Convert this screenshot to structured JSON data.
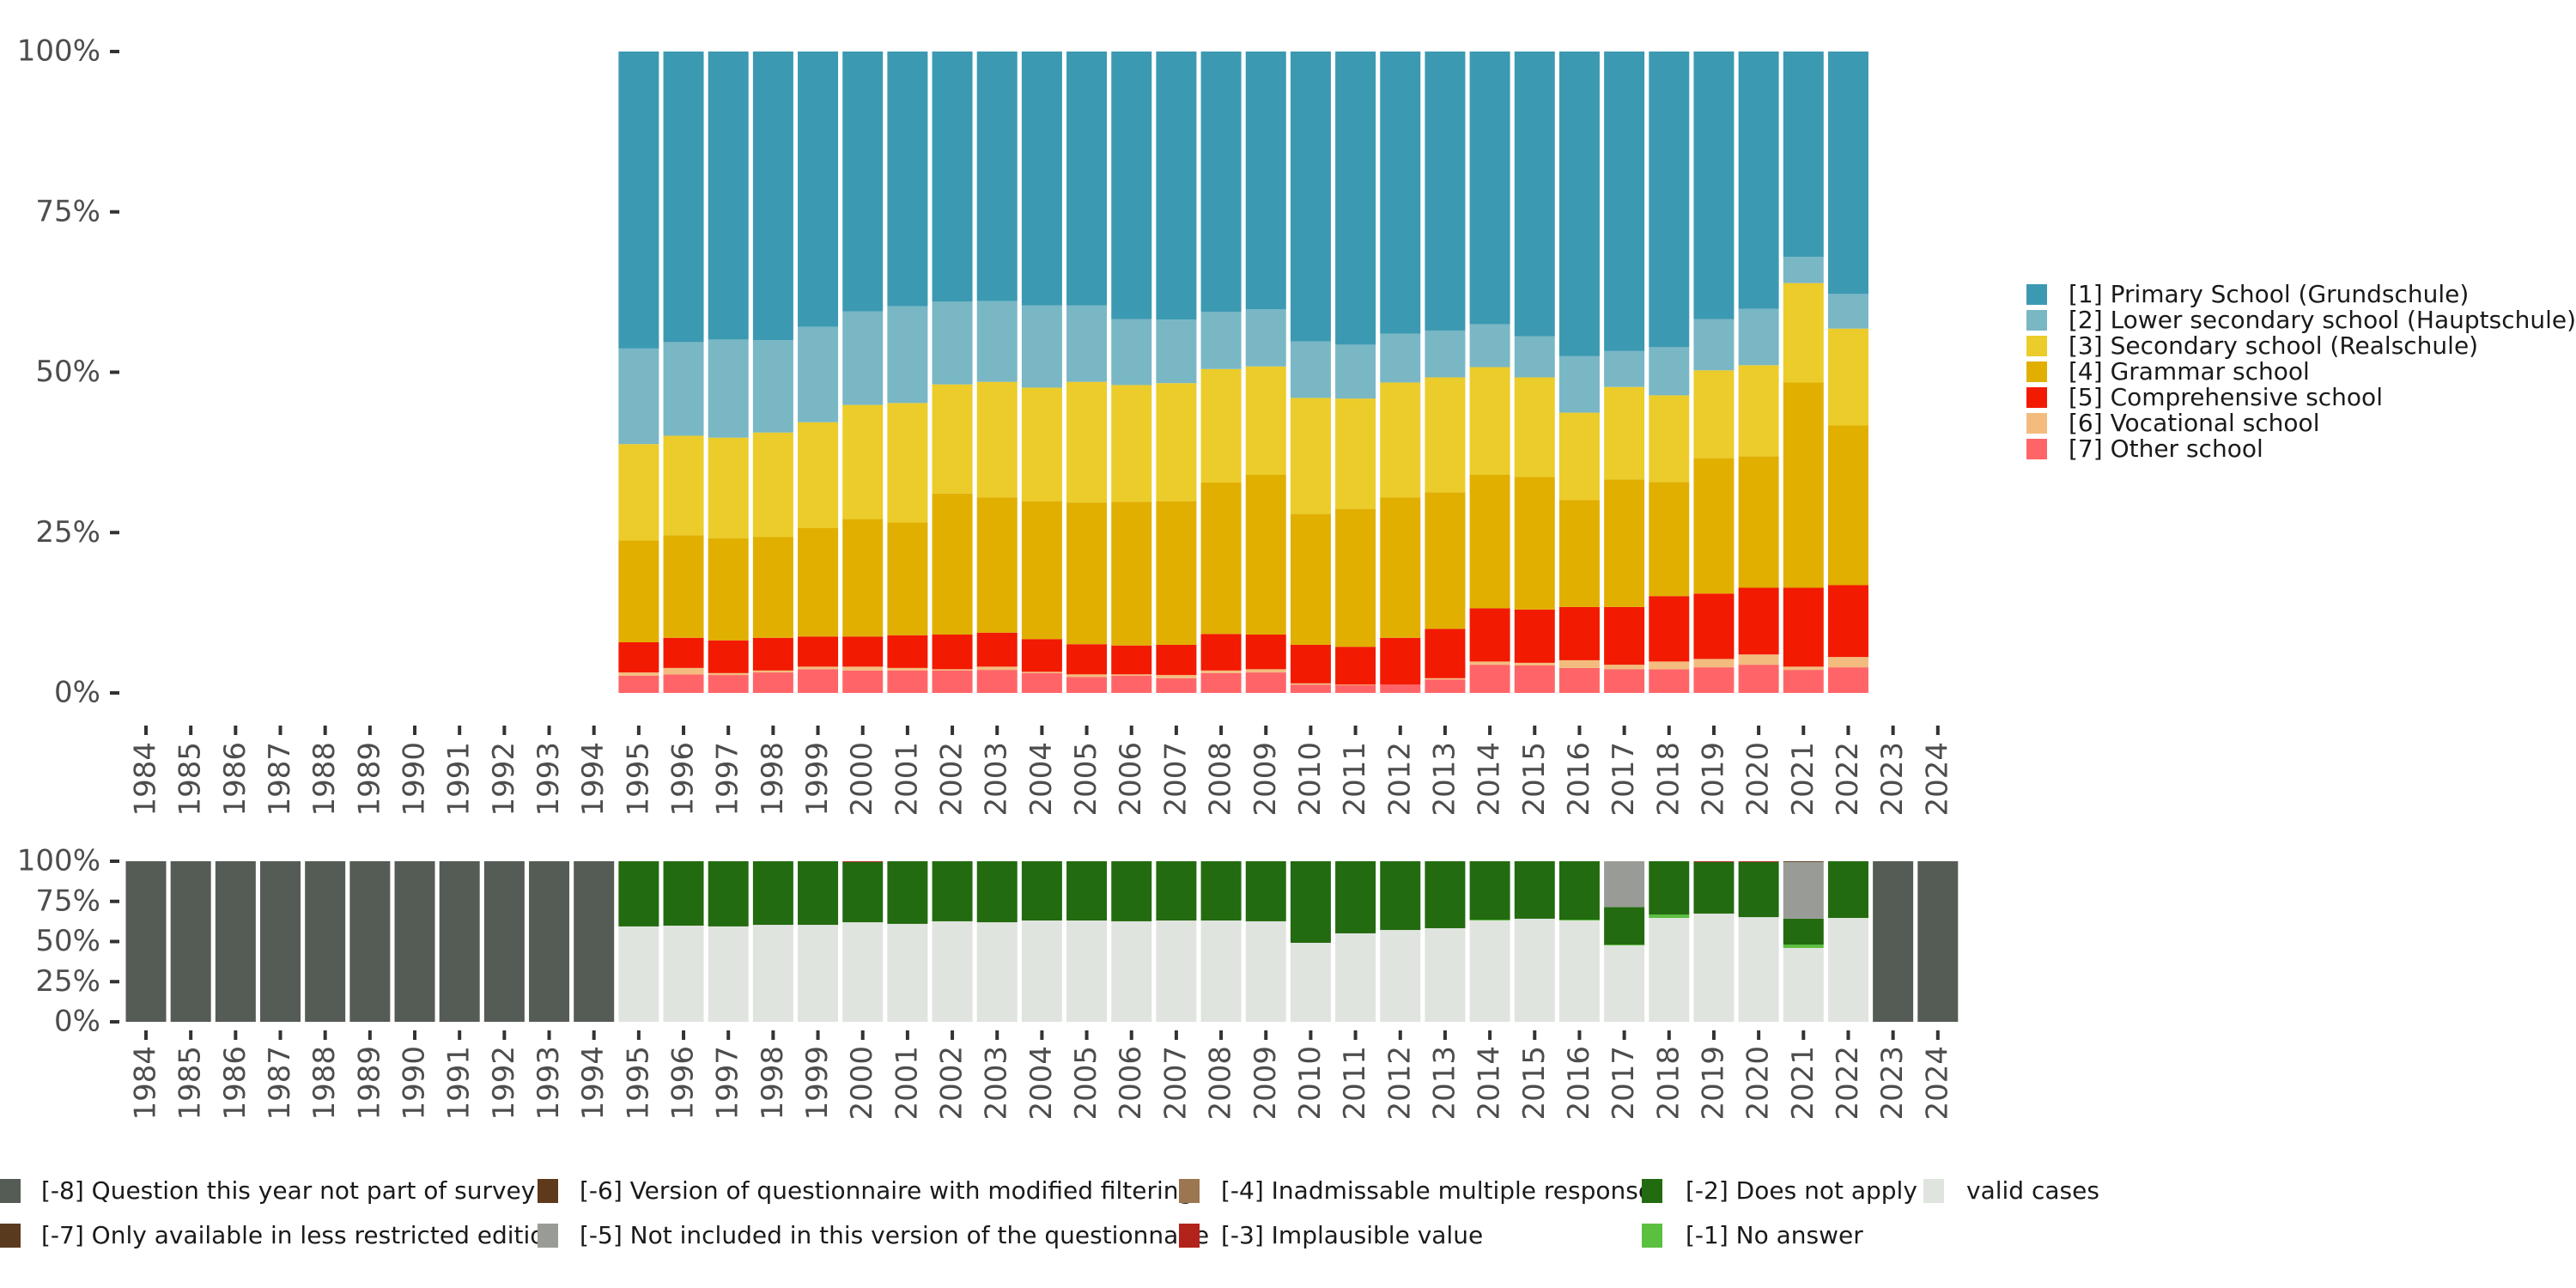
{
  "chart_data": [
    {
      "type": "bar",
      "stacked": true,
      "normalized": true,
      "title": "",
      "xlabel": "",
      "ylabel": "",
      "ylim": [
        0,
        100
      ],
      "yticks": [
        "0%",
        "25%",
        "50%",
        "75%",
        "100%"
      ],
      "categories": [
        "1984",
        "1985",
        "1986",
        "1987",
        "1988",
        "1989",
        "1990",
        "1991",
        "1992",
        "1993",
        "1994",
        "1995",
        "1996",
        "1997",
        "1998",
        "1999",
        "2000",
        "2001",
        "2002",
        "2003",
        "2004",
        "2005",
        "2006",
        "2007",
        "2008",
        "2009",
        "2010",
        "2011",
        "2012",
        "2013",
        "2014",
        "2015",
        "2016",
        "2017",
        "2018",
        "2019",
        "2020",
        "2021",
        "2022",
        "2023",
        "2024"
      ],
      "legend_position": "right",
      "series": [
        {
          "name": "[7] Other school",
          "color": "#FF6568",
          "values": [
            null,
            null,
            null,
            null,
            null,
            null,
            null,
            null,
            null,
            null,
            null,
            2.7,
            2.9,
            2.8,
            3.2,
            3.7,
            3.5,
            3.5,
            3.5,
            3.6,
            3.1,
            2.5,
            2.7,
            2.3,
            3.1,
            3.2,
            1.3,
            1.2,
            1.3,
            2.1,
            4.4,
            4.3,
            3.9,
            3.7,
            3.7,
            4.0,
            4.4,
            3.6,
            4.0,
            null,
            null
          ]
        },
        {
          "name": "[6] Vocational school",
          "color": "#F3BC7E",
          "values": [
            null,
            null,
            null,
            null,
            null,
            null,
            null,
            null,
            null,
            null,
            null,
            0.5,
            1.0,
            0.3,
            0.3,
            0.4,
            0.6,
            0.4,
            0.2,
            0.5,
            0.2,
            0.4,
            0.2,
            0.5,
            0.4,
            0.5,
            0.2,
            0.1,
            0.0,
            0.2,
            0.5,
            0.4,
            1.2,
            0.7,
            1.2,
            1.3,
            1.6,
            0.5,
            1.6,
            null,
            null
          ]
        },
        {
          "name": "[5] Comprehensive school",
          "color": "#F21A00",
          "values": [
            null,
            null,
            null,
            null,
            null,
            null,
            null,
            null,
            null,
            null,
            null,
            4.7,
            4.7,
            5.1,
            5.1,
            4.7,
            4.7,
            5.1,
            5.4,
            5.3,
            5.1,
            4.7,
            4.5,
            4.7,
            5.7,
            5.4,
            6.0,
            5.9,
            7.3,
            7.7,
            8.3,
            8.3,
            8.3,
            9.0,
            10.2,
            10.2,
            10.4,
            12.3,
            11.2,
            null,
            null
          ]
        },
        {
          "name": "[4] Grammar school",
          "color": "#E1AF00",
          "values": [
            null,
            null,
            null,
            null,
            null,
            null,
            null,
            null,
            null,
            null,
            null,
            15.9,
            16.0,
            15.9,
            15.7,
            16.9,
            18.3,
            17.6,
            22.0,
            21.1,
            21.5,
            22.1,
            22.4,
            22.4,
            23.6,
            24.9,
            20.4,
            21.5,
            21.9,
            21.3,
            20.8,
            20.7,
            16.7,
            19.9,
            17.8,
            21.1,
            20.5,
            32.0,
            24.9,
            null,
            null
          ]
        },
        {
          "name": "[3] Secondary school (Realschule)",
          "color": "#EBCC2A",
          "values": [
            null,
            null,
            null,
            null,
            null,
            null,
            null,
            null,
            null,
            null,
            null,
            15.0,
            15.5,
            15.7,
            16.3,
            16.5,
            17.8,
            18.6,
            17.0,
            18.0,
            17.7,
            18.8,
            18.2,
            18.4,
            17.7,
            16.9,
            18.1,
            17.2,
            17.9,
            17.9,
            16.8,
            15.5,
            13.6,
            14.4,
            13.5,
            13.7,
            14.2,
            15.5,
            15.1,
            null,
            null
          ]
        },
        {
          "name": "[2] Lower secondary school (Hauptschule)",
          "color": "#79B7C5",
          "values": [
            null,
            null,
            null,
            null,
            null,
            null,
            null,
            null,
            null,
            null,
            null,
            14.9,
            14.6,
            15.3,
            14.4,
            14.9,
            14.6,
            15.1,
            12.9,
            12.6,
            12.8,
            11.9,
            10.3,
            9.9,
            8.9,
            8.9,
            8.8,
            8.4,
            7.6,
            7.3,
            6.7,
            6.4,
            8.8,
            5.6,
            7.5,
            8.0,
            8.8,
            4.1,
            5.4,
            null,
            null
          ]
        },
        {
          "name": "[1] Primary School (Grundschule)",
          "color": "#3C99B2",
          "values": [
            null,
            null,
            null,
            null,
            null,
            null,
            null,
            null,
            null,
            null,
            null,
            46.3,
            45.3,
            44.9,
            45.0,
            42.9,
            40.5,
            39.7,
            39.0,
            38.9,
            39.6,
            39.6,
            41.7,
            41.8,
            40.6,
            40.2,
            45.2,
            45.7,
            44.0,
            43.5,
            42.5,
            44.4,
            47.5,
            46.7,
            46.1,
            41.7,
            40.1,
            32.0,
            37.8,
            null,
            null
          ]
        }
      ],
      "legend": [
        {
          "label": "[1] Primary School (Grundschule)",
          "color": "#3C99B2"
        },
        {
          "label": "[2] Lower secondary school (Hauptschule)",
          "color": "#79B7C5"
        },
        {
          "label": "[3] Secondary school (Realschule)",
          "color": "#EBCC2A"
        },
        {
          "label": "[4] Grammar school",
          "color": "#E1AF00"
        },
        {
          "label": "[5] Comprehensive school",
          "color": "#F21A00"
        },
        {
          "label": "[6] Vocational school",
          "color": "#F3BC7E"
        },
        {
          "label": "[7] Other school",
          "color": "#FF6568"
        }
      ]
    },
    {
      "type": "bar",
      "stacked": true,
      "normalized": true,
      "title": "",
      "xlabel": "",
      "ylabel": "",
      "ylim": [
        0,
        100
      ],
      "yticks": [
        "0%",
        "25%",
        "50%",
        "75%",
        "100%"
      ],
      "categories": [
        "1984",
        "1985",
        "1986",
        "1987",
        "1988",
        "1989",
        "1990",
        "1991",
        "1992",
        "1993",
        "1994",
        "1995",
        "1996",
        "1997",
        "1998",
        "1999",
        "2000",
        "2001",
        "2002",
        "2003",
        "2004",
        "2005",
        "2006",
        "2007",
        "2008",
        "2009",
        "2010",
        "2011",
        "2012",
        "2013",
        "2014",
        "2015",
        "2016",
        "2017",
        "2018",
        "2019",
        "2020",
        "2021",
        "2022",
        "2023",
        "2024"
      ],
      "legend_position": "bottom",
      "series": [
        {
          "name": "valid cases",
          "color": "#E0E4DF",
          "values": [
            0,
            0,
            0,
            0,
            0,
            0,
            0,
            0,
            0,
            0,
            0,
            59.4,
            59.9,
            59.4,
            60.4,
            60.4,
            62.0,
            61.0,
            62.6,
            62.0,
            63.1,
            63.1,
            62.6,
            63.1,
            63.1,
            62.6,
            49.2,
            55.1,
            57.2,
            58.3,
            63.1,
            64.2,
            63.1,
            47.6,
            64.7,
            67.4,
            65.2,
            46.0,
            64.7,
            0,
            0
          ]
        },
        {
          "name": "[-1] No answer",
          "color": "#5BBF3F",
          "values": [
            0,
            0,
            0,
            0,
            0,
            0,
            0,
            0,
            0,
            0,
            0,
            0,
            0,
            0,
            0,
            0,
            0,
            0,
            0,
            0,
            0,
            0,
            0,
            0,
            0,
            0,
            0,
            0,
            0,
            0,
            0.5,
            0,
            0.5,
            0.5,
            2.1,
            0,
            0,
            2.1,
            0,
            0,
            0
          ]
        },
        {
          "name": "[-2] Does not apply",
          "color": "#236B10",
          "values": [
            0,
            0,
            0,
            0,
            0,
            0,
            0,
            0,
            0,
            0,
            0,
            40.6,
            40.1,
            40.6,
            39.6,
            39.6,
            37.5,
            39.0,
            37.4,
            38.0,
            36.9,
            36.9,
            37.4,
            36.9,
            36.9,
            37.4,
            50.8,
            44.9,
            42.8,
            41.7,
            36.4,
            35.8,
            36.4,
            23.4,
            33.2,
            32.1,
            34.3,
            16.1,
            35.3,
            0,
            0
          ]
        },
        {
          "name": "[-3] Implausible value",
          "color": "#B2231B",
          "values": [
            0,
            0,
            0,
            0,
            0,
            0,
            0,
            0,
            0,
            0,
            0,
            0,
            0,
            0,
            0,
            0,
            0.5,
            0,
            0,
            0,
            0,
            0,
            0,
            0,
            0,
            0,
            0,
            0,
            0,
            0,
            0,
            0,
            0,
            0,
            0,
            0.5,
            0.5,
            0,
            0,
            0,
            0
          ]
        },
        {
          "name": "[-4] Inadmissable multiple response",
          "color": "#9B7650",
          "values": [
            0,
            0,
            0,
            0,
            0,
            0,
            0,
            0,
            0,
            0,
            0,
            0,
            0,
            0,
            0,
            0,
            0,
            0,
            0,
            0,
            0,
            0,
            0,
            0,
            0,
            0,
            0,
            0,
            0,
            0,
            0,
            0,
            0,
            0,
            0,
            0,
            0,
            0,
            0,
            0,
            0
          ]
        },
        {
          "name": "[-5] Not included in this version of the questionnaire",
          "color": "#999C96",
          "values": [
            0,
            0,
            0,
            0,
            0,
            0,
            0,
            0,
            0,
            0,
            0,
            0,
            0,
            0,
            0,
            0,
            0,
            0,
            0,
            0,
            0,
            0,
            0,
            0,
            0,
            0,
            0,
            0,
            0,
            0,
            0,
            0,
            0,
            28.5,
            0,
            0,
            0,
            35.3,
            0,
            0,
            0
          ]
        },
        {
          "name": "[-6] Version of questionnaire with modified filtering",
          "color": "#5E3A1A",
          "values": [
            0,
            0,
            0,
            0,
            0,
            0,
            0,
            0,
            0,
            0,
            0,
            0,
            0,
            0,
            0,
            0,
            0,
            0,
            0,
            0,
            0,
            0,
            0,
            0,
            0,
            0,
            0,
            0,
            0,
            0,
            0,
            0,
            0,
            0,
            0,
            0,
            0,
            0.5,
            0,
            0,
            0
          ]
        },
        {
          "name": "[-7] Only available in less restricted edition",
          "color": "#5A3A1E",
          "values": [
            0,
            0,
            0,
            0,
            0,
            0,
            0,
            0,
            0,
            0,
            0,
            0,
            0,
            0,
            0,
            0,
            0,
            0,
            0,
            0,
            0,
            0,
            0,
            0,
            0,
            0,
            0,
            0,
            0,
            0,
            0,
            0,
            0,
            0,
            0,
            0,
            0,
            0,
            0,
            0,
            0
          ]
        },
        {
          "name": "[-8] Question this year not part of survey",
          "color": "#555B55",
          "values": [
            100,
            100,
            100,
            100,
            100,
            100,
            100,
            100,
            100,
            100,
            100,
            0,
            0,
            0,
            0,
            0,
            0,
            0,
            0,
            0,
            0,
            0,
            0,
            0,
            0,
            0,
            0,
            0,
            0,
            0,
            0,
            0,
            0,
            0,
            0,
            0,
            0,
            0,
            0,
            100,
            100
          ]
        }
      ],
      "legend": [
        {
          "label": "[-8] Question this year not part of survey",
          "color": "#555B55"
        },
        {
          "label": "[-6] Version of questionnaire with modified filtering",
          "color": "#5E3A1A"
        },
        {
          "label": "[-4] Inadmissable multiple response",
          "color": "#9B7650"
        },
        {
          "label": "[-2] Does not apply",
          "color": "#236B10"
        },
        {
          "label": "valid cases",
          "color": "#E0E4DF"
        },
        {
          "label": "[-7] Only available in less restricted edition",
          "color": "#5A3A1E"
        },
        {
          "label": "[-5] Not included in this version of the questionnaire",
          "color": "#999C96"
        },
        {
          "label": "[-3] Implausible value",
          "color": "#B2231B"
        },
        {
          "label": "[-1] No answer",
          "color": "#5BBF3F"
        }
      ]
    }
  ]
}
